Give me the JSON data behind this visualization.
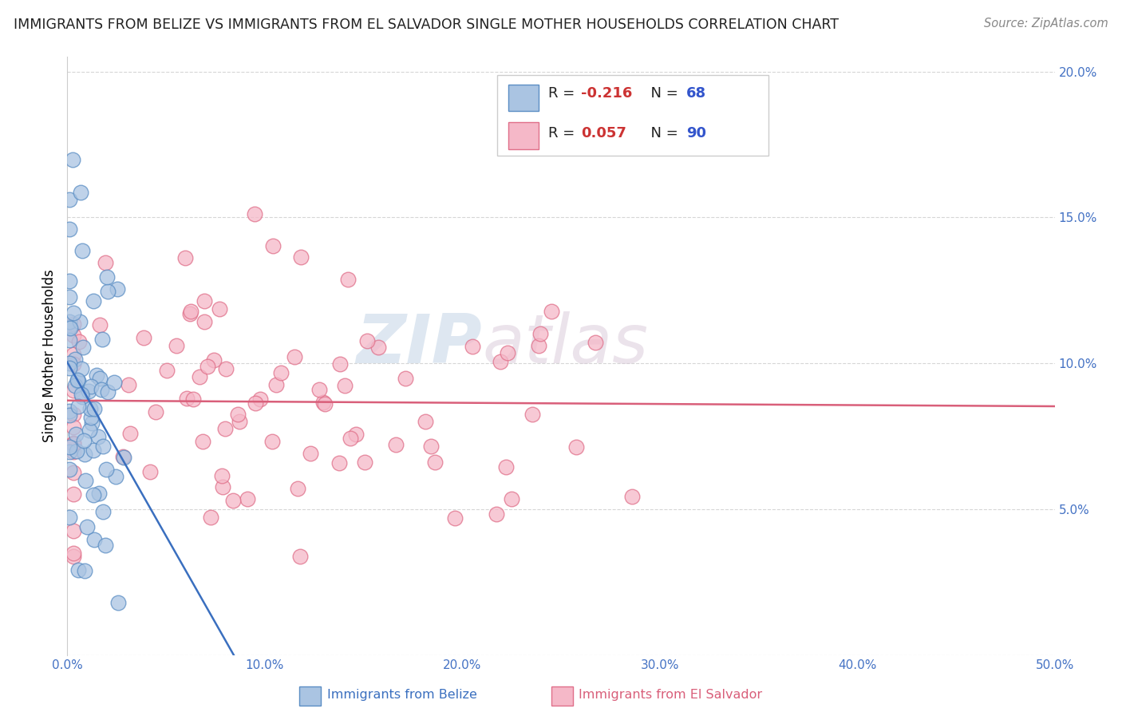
{
  "title": "IMMIGRANTS FROM BELIZE VS IMMIGRANTS FROM EL SALVADOR SINGLE MOTHER HOUSEHOLDS CORRELATION CHART",
  "source": "Source: ZipAtlas.com",
  "ylabel_label": "Single Mother Households",
  "xlim": [
    0.0,
    0.5
  ],
  "ylim": [
    0.0,
    0.205
  ],
  "xticks": [
    0.0,
    0.1,
    0.2,
    0.3,
    0.4,
    0.5
  ],
  "xticklabels": [
    "0.0%",
    "10.0%",
    "20.0%",
    "30.0%",
    "40.0%",
    "50.0%"
  ],
  "yticks": [
    0.0,
    0.05,
    0.1,
    0.15,
    0.2
  ],
  "yticklabels": [
    "",
    "5.0%",
    "10.0%",
    "15.0%",
    "20.0%"
  ],
  "belize_R": -0.216,
  "belize_N": 68,
  "salvador_R": 0.057,
  "salvador_N": 90,
  "belize_color": "#aac4e2",
  "salvador_color": "#f5b8c8",
  "belize_edge_color": "#5b8ec4",
  "salvador_edge_color": "#e0708a",
  "belize_line_color": "#3a6fbf",
  "salvador_line_color": "#d95f7a",
  "watermark_zip": "ZIP",
  "watermark_atlas": "atlas",
  "grid_color": "#cccccc",
  "title_color": "#222222",
  "tick_color": "#4472c4",
  "source_color": "#888888"
}
